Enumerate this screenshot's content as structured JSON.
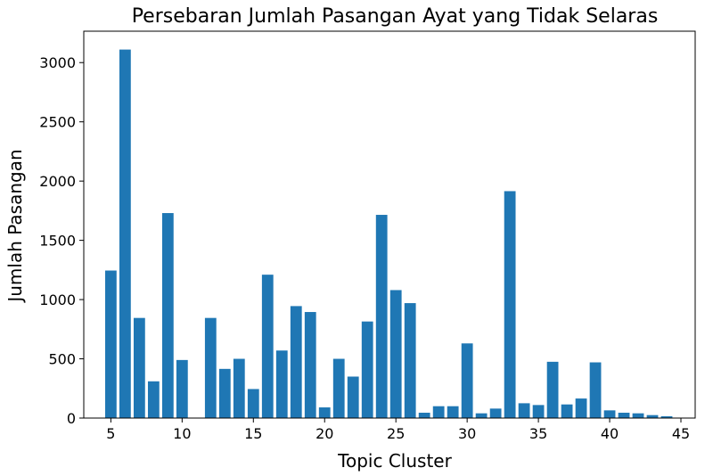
{
  "chart_data": {
    "type": "bar",
    "title": "Persebaran Jumlah Pasangan Ayat yang Tidak Selaras",
    "xlabel": "Topic Cluster",
    "ylabel": "Jumlah Pasangan",
    "x": [
      5,
      6,
      7,
      8,
      9,
      10,
      12,
      13,
      14,
      15,
      16,
      17,
      18,
      19,
      20,
      21,
      22,
      23,
      24,
      25,
      26,
      27,
      28,
      29,
      30,
      31,
      32,
      33,
      34,
      35,
      36,
      37,
      38,
      39,
      40,
      41,
      42,
      43,
      44
    ],
    "values": [
      1245,
      3110,
      845,
      310,
      1730,
      490,
      845,
      415,
      500,
      245,
      1210,
      570,
      945,
      895,
      90,
      500,
      350,
      815,
      1715,
      1080,
      970,
      45,
      100,
      100,
      630,
      40,
      80,
      1915,
      125,
      110,
      475,
      115,
      165,
      470,
      65,
      45,
      40,
      25,
      15
    ],
    "xticks": [
      5,
      10,
      15,
      20,
      25,
      30,
      35,
      40,
      45
    ],
    "yticks": [
      0,
      500,
      1000,
      1500,
      2000,
      2500,
      3000
    ],
    "xlim": [
      3.1,
      46.0
    ],
    "ylim": [
      0,
      3265
    ],
    "bar_color": "#1f77b4",
    "grid": false
  }
}
